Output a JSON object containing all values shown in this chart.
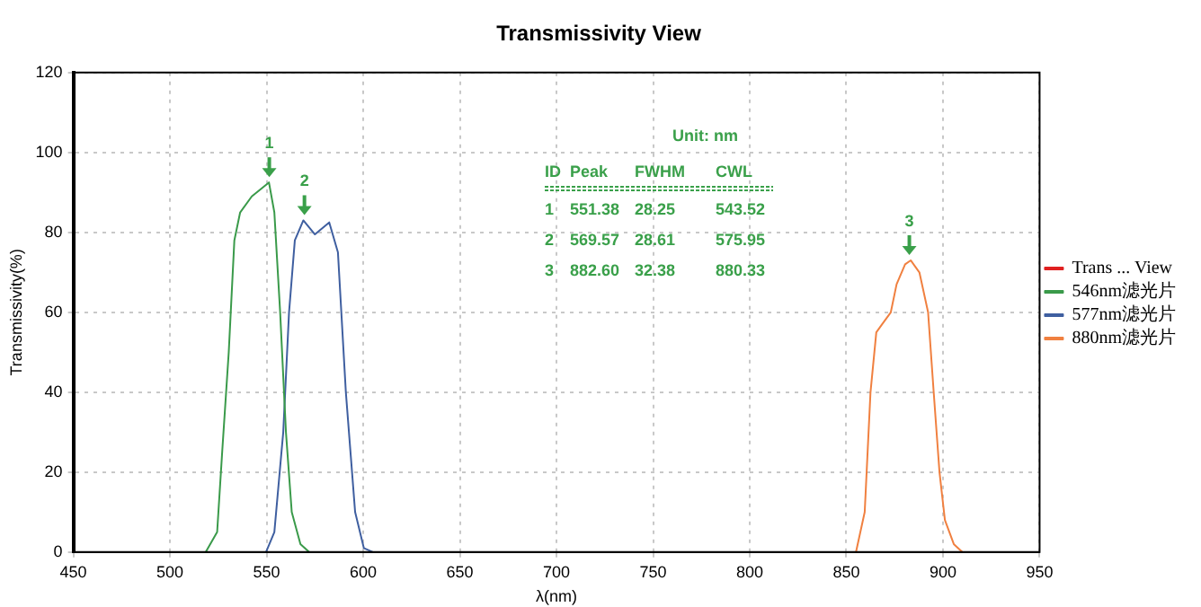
{
  "chart_data": {
    "type": "line",
    "title": "Transmissivity View",
    "xlabel": "λ(nm)",
    "ylabel": "Transmissivity(%)",
    "xlim": [
      450,
      950
    ],
    "xticks": [
      450,
      500,
      550,
      600,
      650,
      700,
      750,
      800,
      850,
      900,
      950
    ],
    "ylim": [
      0,
      120
    ],
    "yticks": [
      0,
      20,
      40,
      60,
      80,
      100,
      120
    ],
    "grid": true,
    "legend": "right",
    "marker": "none",
    "line_style": "solid",
    "series": [
      {
        "name": "Trans ... View",
        "color": "#e02020"
      },
      {
        "name": "546nm滤光片",
        "color": "#3a9a4a",
        "x": [
          518.5,
          524.4,
          527,
          530.4,
          533.3,
          536.3,
          542.3,
          551.2,
          554,
          557,
          560,
          563,
          567.5,
          572
        ],
        "values": [
          0,
          5,
          25,
          50,
          78,
          85,
          89,
          92.5,
          85,
          60,
          30,
          10,
          2,
          0
        ]
      },
      {
        "name": "577nm滤光片",
        "color": "#3f5fa0",
        "x": [
          549.7,
          554,
          558.6,
          561.6,
          564.6,
          569,
          575,
          582.4,
          586.9,
          591,
          595.8,
          600.3,
          605
        ],
        "values": [
          0,
          5,
          30,
          60,
          78,
          83,
          79.5,
          82.5,
          75,
          40,
          10,
          1,
          0
        ]
      },
      {
        "name": "880nm滤光片",
        "color": "#f08040",
        "x": [
          855,
          859.5,
          862.5,
          865.5,
          868.5,
          873,
          876,
          880.4,
          883.3,
          887.8,
          892.3,
          895.2,
          898.2,
          901,
          905.6,
          910
        ],
        "values": [
          0,
          10,
          40,
          55,
          57,
          60,
          67,
          72,
          73,
          70,
          60,
          40,
          20,
          8,
          2,
          0
        ]
      }
    ],
    "annotations": [
      {
        "text": "1",
        "x": 551.38,
        "y": 92.5
      },
      {
        "text": "2",
        "x": 569.57,
        "y": 83
      },
      {
        "text": "3",
        "x": 882.6,
        "y": 73
      },
      "Unit: nm",
      "ID  Peak  FWHM  CWL",
      "1  551.38  28.25  543.52",
      "2  569.57  28.61  575.95",
      "3  882.60  32.38  880.33"
    ]
  }
}
